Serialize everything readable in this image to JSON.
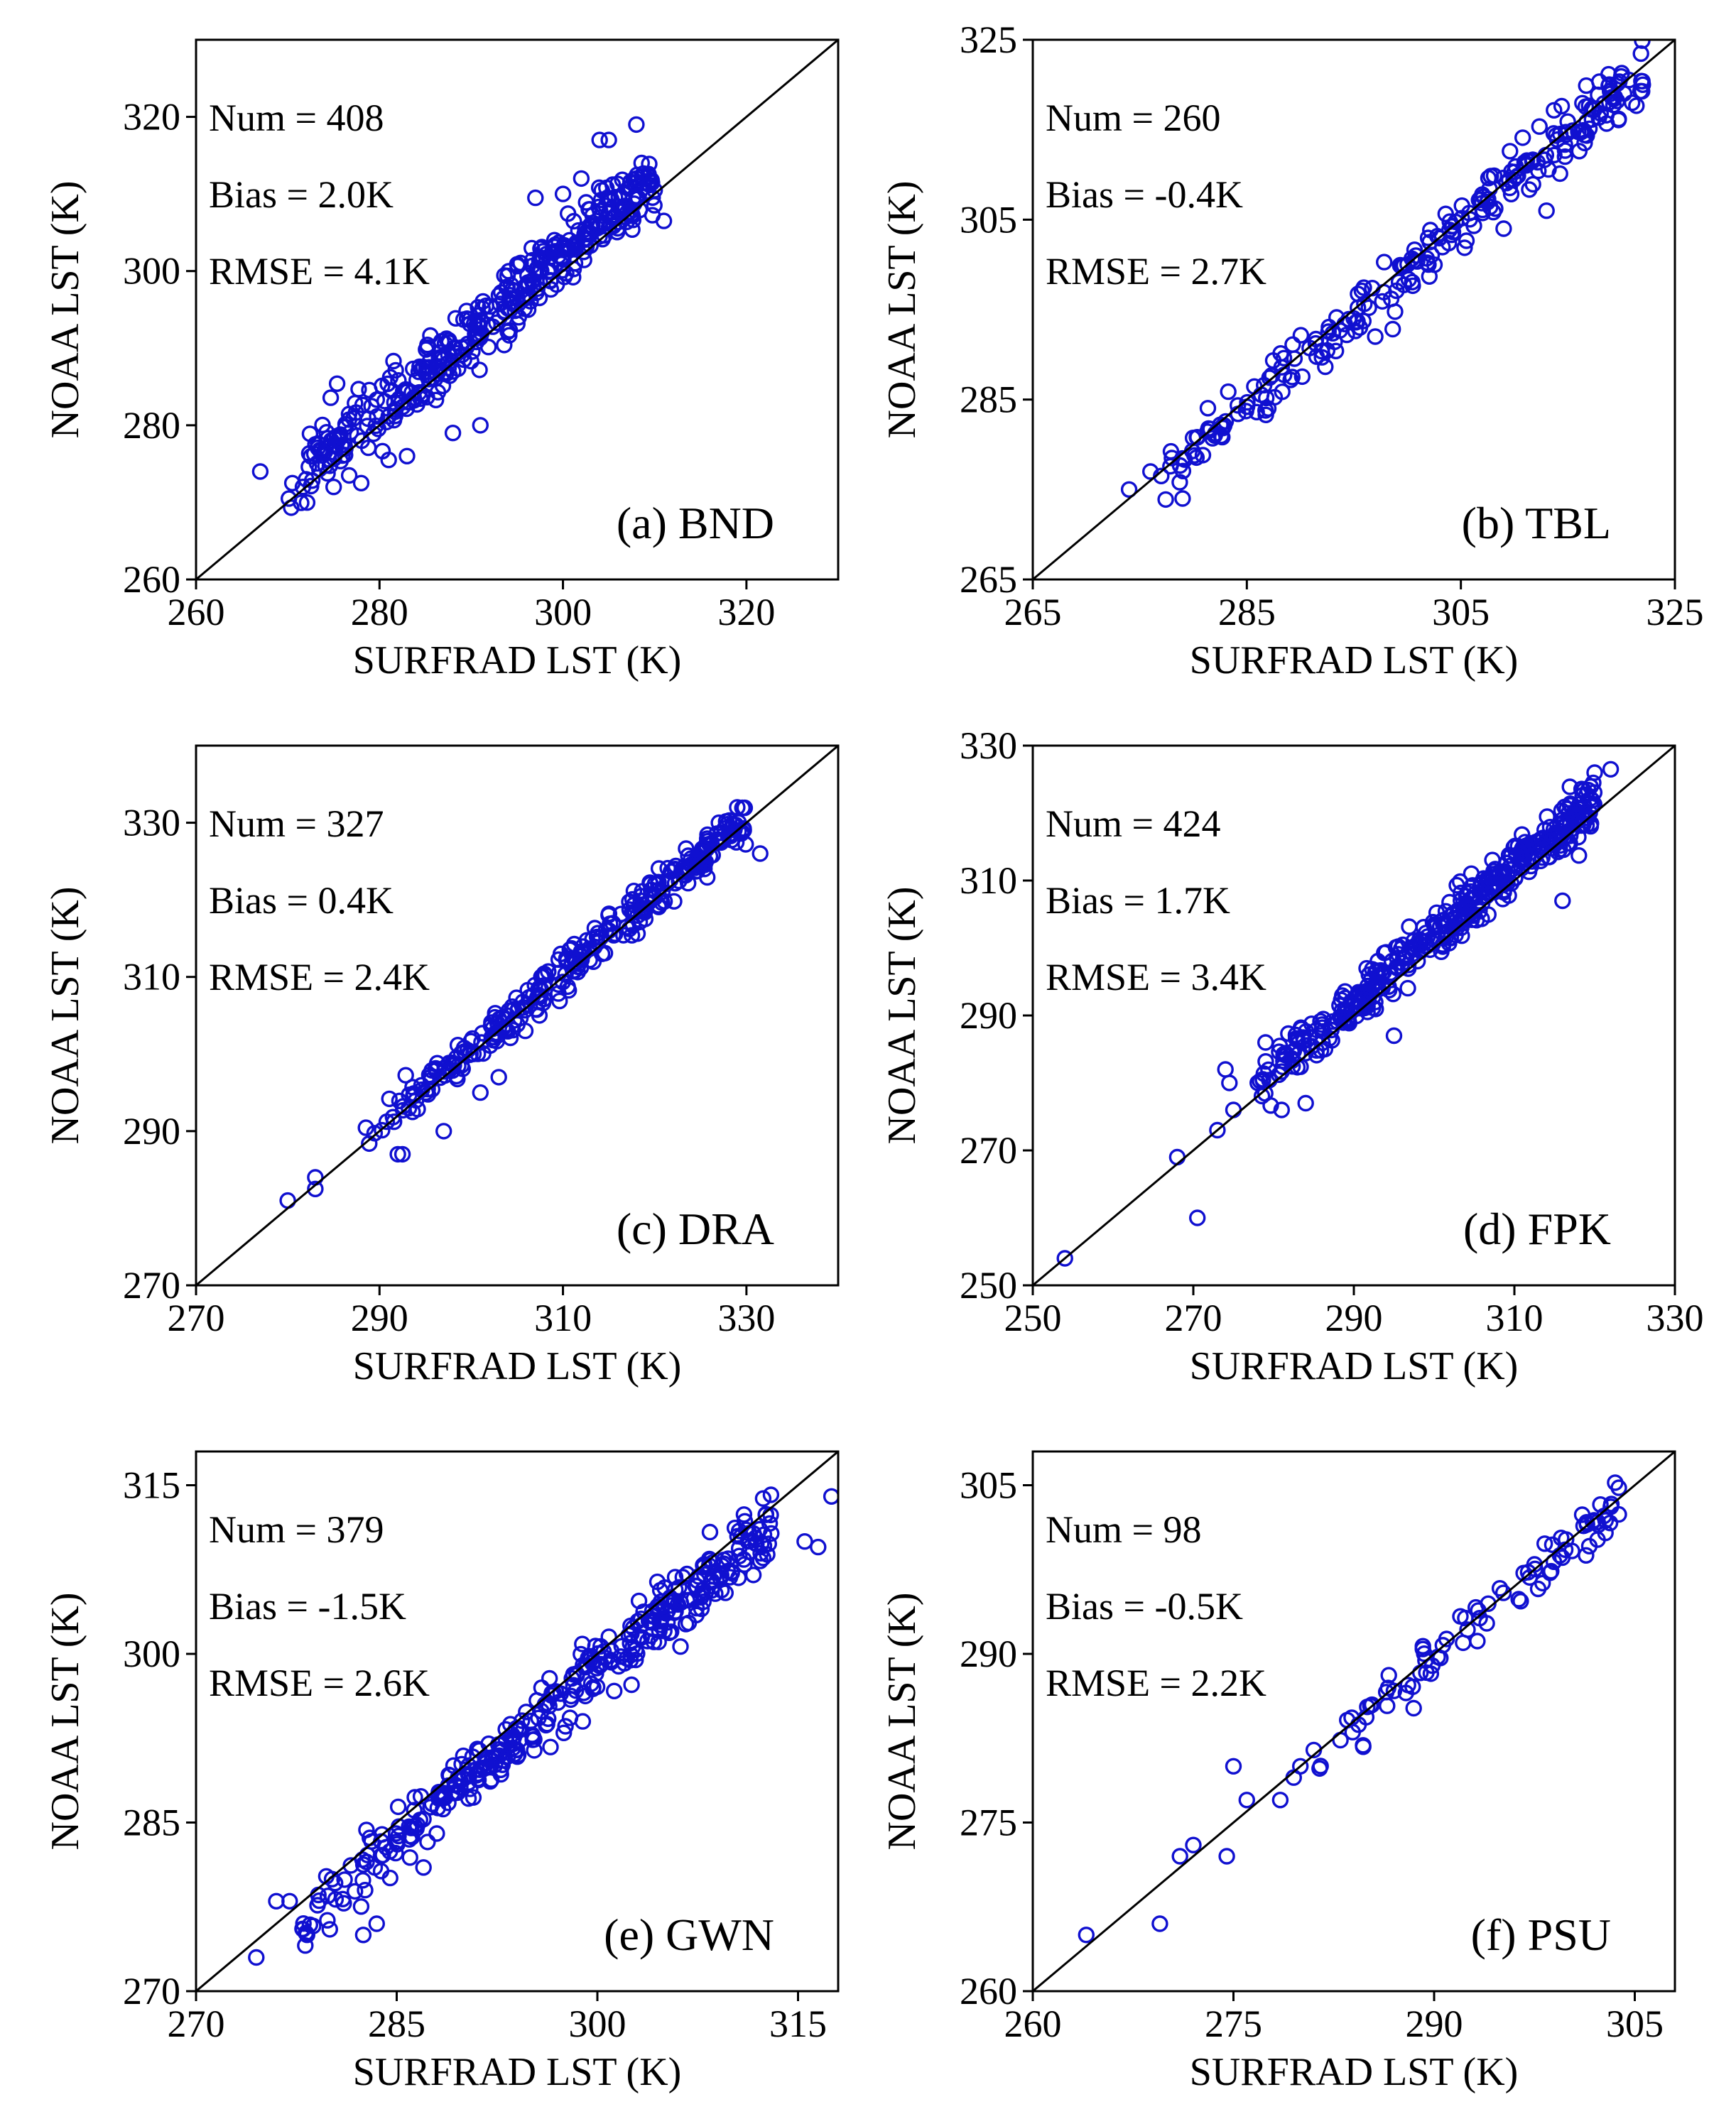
{
  "figure": {
    "description_colors": {
      "marker": "#1010d0",
      "line": "#000000",
      "background": "#ffffff"
    }
  },
  "chart_data": [
    {
      "type": "scatter",
      "panel_label": "(a) BND",
      "xlabel": "SURFRAD LST (K)",
      "ylabel": "NOAA LST (K)",
      "xlim": [
        260,
        330
      ],
      "ylim": [
        260,
        330
      ],
      "xticks": [
        260,
        280,
        300,
        320
      ],
      "yticks": [
        260,
        280,
        300,
        320
      ],
      "stats": {
        "num": "Num = 408",
        "bias": "Bias = 2.0K",
        "rmse": "RMSE = 4.1K"
      },
      "num": 408,
      "bias": 2.0,
      "rmse": 4.1,
      "reference_line": "1:1",
      "seed": 11,
      "fixed_points": [
        [
          267,
          274
        ],
        [
          270.5,
          272.5
        ],
        [
          272,
          273
        ],
        [
          275,
          272
        ],
        [
          278,
          272.5
        ],
        [
          281,
          275.5
        ],
        [
          283,
          276
        ],
        [
          288,
          279
        ],
        [
          291,
          280
        ],
        [
          311,
          306.5
        ],
        [
          308,
          319
        ],
        [
          305,
          317
        ],
        [
          304,
          317
        ],
        [
          297,
          309.5
        ],
        [
          300,
          310
        ],
        [
          302,
          312
        ]
      ],
      "range": [
        270,
        310
      ]
    },
    {
      "type": "scatter",
      "panel_label": "(b) TBL",
      "xlabel": "SURFRAD LST (K)",
      "ylabel": "NOAA LST (K)",
      "xlim": [
        265,
        325
      ],
      "ylim": [
        265,
        325
      ],
      "xticks": [
        265,
        285,
        305,
        325
      ],
      "yticks": [
        265,
        285,
        305,
        325
      ],
      "stats": {
        "num": "Num = 260",
        "bias": "Bias = -0.4K",
        "rmse": "RMSE = 2.7K"
      },
      "num": 260,
      "bias": -0.4,
      "rmse": 2.7,
      "reference_line": "1:1",
      "seed": 23,
      "fixed_points": [
        [
          274,
          275
        ],
        [
          276,
          277
        ],
        [
          277,
          276.5
        ],
        [
          279,
          274
        ],
        [
          278,
          278.5
        ],
        [
          282,
          281
        ],
        [
          287,
          284
        ],
        [
          297,
          292
        ],
        [
          309,
          304
        ],
        [
          313,
          306
        ],
        [
          319,
          319
        ],
        [
          321,
          318
        ],
        [
          322,
          320
        ]
      ],
      "range": [
        276,
        322
      ]
    },
    {
      "type": "scatter",
      "panel_label": "(c) DRA",
      "xlabel": "SURFRAD LST (K)",
      "ylabel": "NOAA LST (K)",
      "xlim": [
        270,
        340
      ],
      "ylim": [
        270,
        340
      ],
      "xticks": [
        270,
        290,
        310,
        330
      ],
      "yticks": [
        270,
        290,
        310,
        330
      ],
      "stats": {
        "num": "Num = 327",
        "bias": "Bias = 0.4K",
        "rmse": "RMSE = 2.4K"
      },
      "num": 327,
      "bias": 0.4,
      "rmse": 2.4,
      "reference_line": "1:1",
      "seed": 37,
      "fixed_points": [
        [
          280,
          281
        ],
        [
          283,
          282.5
        ],
        [
          283,
          284
        ],
        [
          292,
          287
        ],
        [
          292.5,
          287
        ],
        [
          297,
          290
        ],
        [
          301,
          295
        ],
        [
          303,
          297
        ],
        [
          331.5,
          326
        ],
        [
          329,
          332
        ],
        [
          327,
          330
        ]
      ],
      "range": [
        288,
        330
      ]
    },
    {
      "type": "scatter",
      "panel_label": "(d) FPK",
      "xlabel": "SURFRAD LST (K)",
      "ylabel": "NOAA LST (K)",
      "xlim": [
        250,
        330
      ],
      "ylim": [
        250,
        330
      ],
      "xticks": [
        250,
        270,
        290,
        310,
        330
      ],
      "yticks": [
        250,
        270,
        290,
        310,
        330
      ],
      "stats": {
        "num": "Num = 424",
        "bias": "Bias = 1.7K",
        "rmse": "RMSE = 3.4K"
      },
      "num": 424,
      "bias": 1.7,
      "rmse": 3.4,
      "reference_line": "1:1",
      "seed": 41,
      "fixed_points": [
        [
          254,
          254
        ],
        [
          268,
          269
        ],
        [
          270.5,
          260
        ],
        [
          273,
          273
        ],
        [
          274,
          282
        ],
        [
          274.5,
          280
        ],
        [
          275,
          276
        ],
        [
          279,
          286
        ],
        [
          281,
          276
        ],
        [
          284,
          277
        ],
        [
          295,
          287
        ],
        [
          316,
          307
        ],
        [
          320,
          326
        ],
        [
          322,
          326.5
        ]
      ],
      "range": [
        277,
        320
      ]
    },
    {
      "type": "scatter",
      "panel_label": "(e) GWN",
      "xlabel": "SURFRAD LST (K)",
      "ylabel": "NOAA LST (K)",
      "xlim": [
        270,
        318
      ],
      "ylim": [
        270,
        318
      ],
      "xticks": [
        270,
        285,
        300,
        315
      ],
      "yticks": [
        270,
        285,
        300,
        315
      ],
      "stats": {
        "num": "Num = 379",
        "bias": "Bias = -1.5K",
        "rmse": "RMSE = 2.6K"
      },
      "num": 379,
      "bias": -1.5,
      "rmse": 2.6,
      "reference_line": "1:1",
      "seed": 53,
      "fixed_points": [
        [
          274.5,
          273
        ],
        [
          276,
          278
        ],
        [
          277,
          278
        ],
        [
          278,
          275.5
        ],
        [
          280,
          275.5
        ],
        [
          282.5,
          275
        ],
        [
          283.5,
          276
        ],
        [
          287,
          281
        ],
        [
          315.5,
          310
        ],
        [
          316.5,
          309.5
        ],
        [
          317.5,
          314
        ]
      ],
      "range": [
        277,
        313
      ]
    },
    {
      "type": "scatter",
      "panel_label": "(f) PSU",
      "xlabel": "SURFRAD LST (K)",
      "ylabel": "NOAA LST (K)",
      "xlim": [
        260,
        308
      ],
      "ylim": [
        260,
        308
      ],
      "xticks": [
        260,
        275,
        290,
        305
      ],
      "yticks": [
        260,
        275,
        290,
        305
      ],
      "stats": {
        "num": "Num = 98",
        "bias": "Bias = -0.5K",
        "rmse": "RMSE = 2.2K"
      },
      "num": 98,
      "bias": -0.5,
      "rmse": 2.2,
      "reference_line": "1:1",
      "seed": 67,
      "fixed_points": [
        [
          264,
          265
        ],
        [
          269.5,
          266
        ],
        [
          271,
          272
        ],
        [
          272,
          273
        ],
        [
          274.5,
          272
        ],
        [
          275,
          280
        ],
        [
          276,
          277
        ],
        [
          278.5,
          277
        ],
        [
          279.5,
          279
        ],
        [
          280,
          280
        ]
      ],
      "range": [
        281,
        304
      ]
    }
  ]
}
